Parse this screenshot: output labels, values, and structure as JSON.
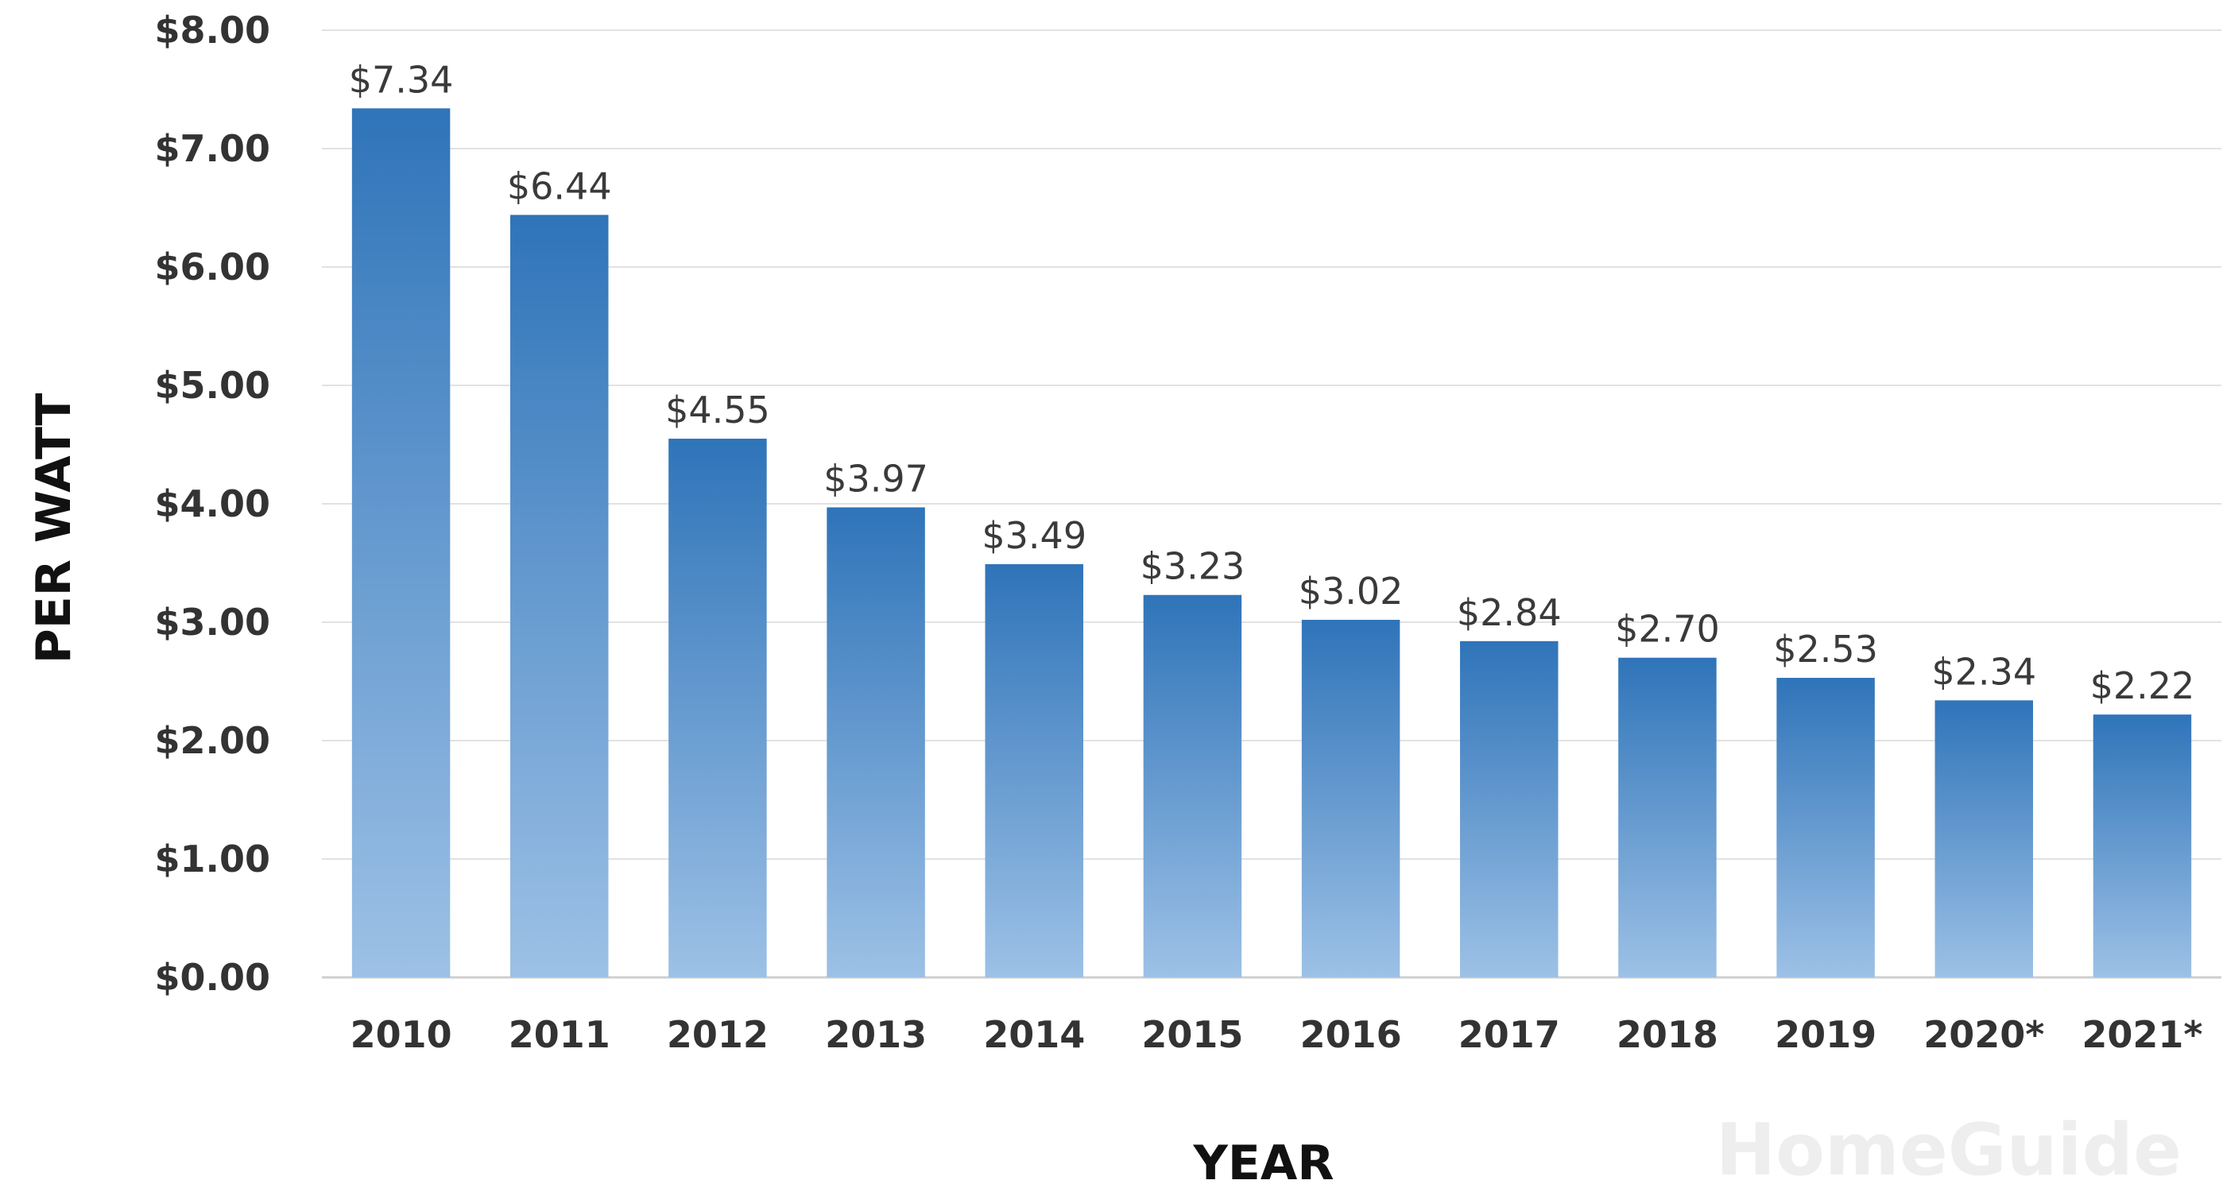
{
  "chart_data": {
    "type": "bar",
    "categories": [
      "2010",
      "2011",
      "2012",
      "2013",
      "2014",
      "2015",
      "2016",
      "2017",
      "2018",
      "2019",
      "2020*",
      "2021*"
    ],
    "values": [
      7.34,
      6.44,
      4.55,
      3.97,
      3.49,
      3.23,
      3.02,
      2.84,
      2.7,
      2.53,
      2.34,
      2.22
    ],
    "data_labels": [
      "$7.34",
      "$6.44",
      "$4.55",
      "$3.97",
      "$3.49",
      "$3.23",
      "$3.02",
      "$2.84",
      "$2.70",
      "$2.53",
      "$2.34",
      "$2.22"
    ],
    "y_ticks": [
      0,
      1,
      2,
      3,
      4,
      5,
      6,
      7,
      8
    ],
    "y_tick_labels": [
      "$0.00",
      "$1.00",
      "$2.00",
      "$3.00",
      "$4.00",
      "$5.00",
      "$6.00",
      "$7.00",
      "$8.00"
    ],
    "ylim": [
      0,
      8
    ],
    "xlabel": "YEAR",
    "ylabel": "PER WATT",
    "grid": true,
    "legend": "none",
    "bar_color_top": "#2f74b9",
    "bar_color_bottom": "#9dc1e6"
  },
  "watermark": "HomeGuide"
}
